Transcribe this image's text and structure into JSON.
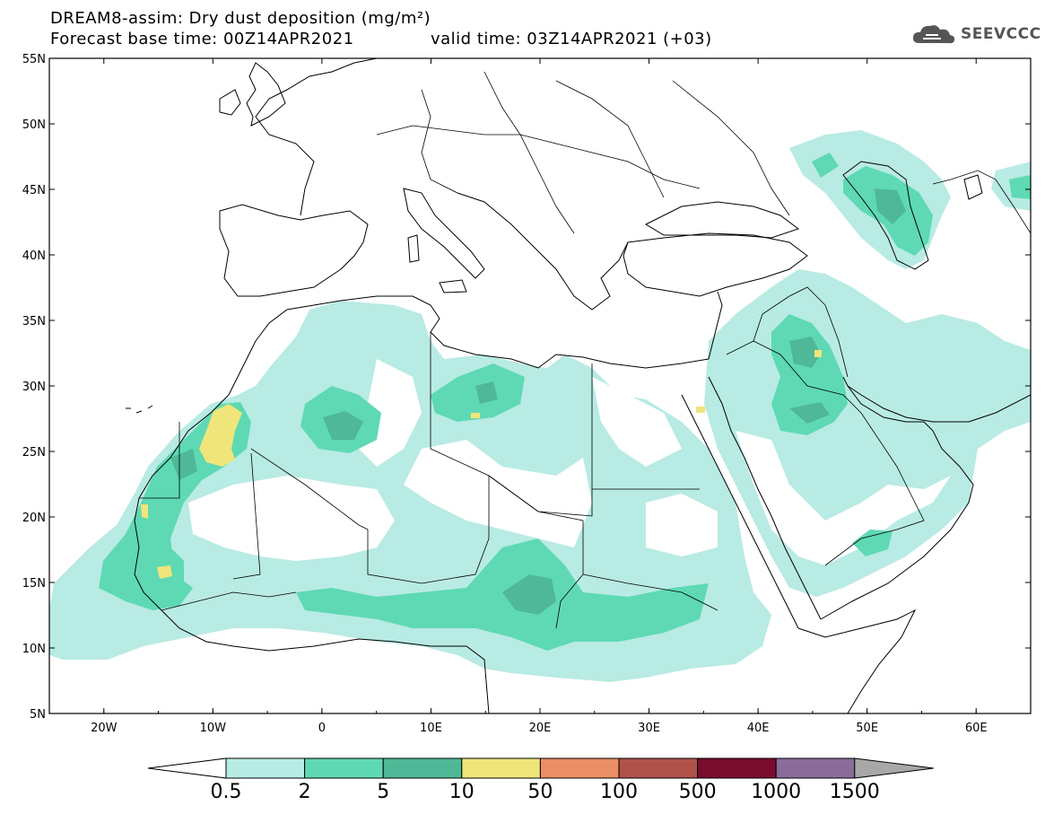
{
  "header": {
    "title_line1": "DREAM8-assim: Dry dust deposition (mg/m²)",
    "title_line2": "Forecast base time: 00Z14APR2021",
    "valid_time": "valid time: 03Z14APR2021 (+03)"
  },
  "logo": {
    "text": "SEEVCCC",
    "icon": "cloud-icon",
    "color": "#555555"
  },
  "map": {
    "lat_labels": [
      "55N",
      "50N",
      "45N",
      "40N",
      "35N",
      "30N",
      "25N",
      "20N",
      "15N",
      "10N",
      "5N"
    ],
    "lon_labels": [
      "20W",
      "10W",
      "0",
      "10E",
      "20E",
      "30E",
      "40E",
      "50E",
      "60E"
    ],
    "extent": {
      "lon_min": -25,
      "lon_max": 65,
      "lat_min": 5,
      "lat_max": 55
    }
  },
  "colorbar": {
    "labels": [
      "0.5",
      "2",
      "5",
      "10",
      "50",
      "100",
      "500",
      "1000",
      "1500"
    ],
    "colors": [
      "#b8ebe3",
      "#5ed9b4",
      "#4fb896",
      "#f0e57a",
      "#ea8e66",
      "#b0524a",
      "#7a0c2e",
      "#8a6c9a",
      "#a8a8a8"
    ],
    "underflow_color": "#ffffff",
    "overflow_color": "#a8a8a8"
  },
  "legend_colors": {
    "land_outline": "#000000",
    "background": "#ffffff"
  }
}
